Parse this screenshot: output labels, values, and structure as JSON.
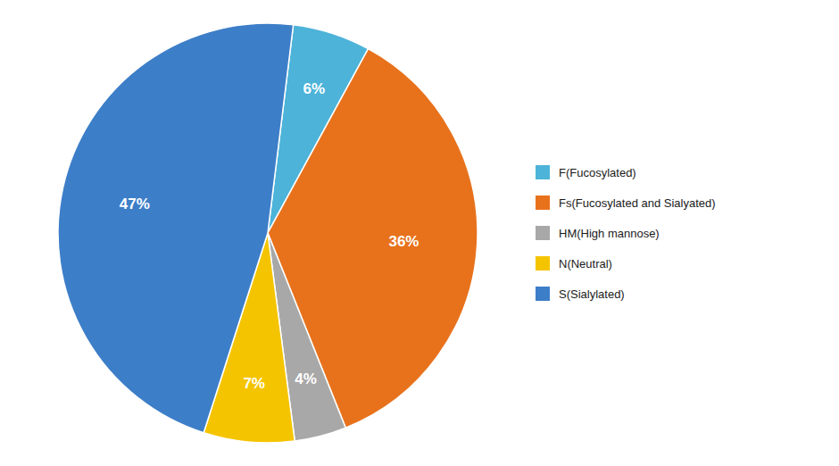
{
  "chart_data": {
    "type": "pie",
    "categories": [
      "F(Fucosylated)",
      "Fs(Fucosylated and Sialyated)",
      "HM(High mannose)",
      "N(Neutral)",
      "S(Sialylated)"
    ],
    "values": [
      6,
      36,
      4,
      7,
      47
    ],
    "value_labels": [
      "6%",
      "36%",
      "4%",
      "7%",
      "47%"
    ],
    "colors": [
      "#4db3d9",
      "#e8721c",
      "#a8a8a8",
      "#f5c400",
      "#3d7ec8"
    ],
    "data_labels": true,
    "legend": "right"
  }
}
